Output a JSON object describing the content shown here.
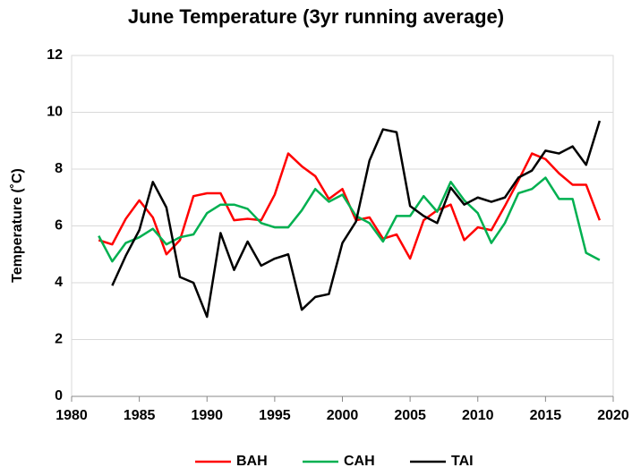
{
  "chart_data": {
    "type": "line",
    "title": "June Temperature (3yr running average)",
    "y_label": "Temperature (˚C)",
    "x": [
      1982,
      1983,
      1984,
      1985,
      1986,
      1987,
      1988,
      1989,
      1990,
      1991,
      1992,
      1993,
      1994,
      1995,
      1996,
      1997,
      1998,
      1999,
      2000,
      2001,
      2002,
      2003,
      2004,
      2005,
      2006,
      2007,
      2008,
      2009,
      2010,
      2011,
      2012,
      2013,
      2014,
      2015,
      2016,
      2017,
      2018,
      2019
    ],
    "series": [
      {
        "name": "BAH",
        "color": "#ff0000",
        "values": [
          5.5,
          5.35,
          6.25,
          6.9,
          6.3,
          5.0,
          5.5,
          7.05,
          7.15,
          7.15,
          6.2,
          6.25,
          6.2,
          7.1,
          8.55,
          8.1,
          7.75,
          6.95,
          7.3,
          6.2,
          6.3,
          5.55,
          5.7,
          4.85,
          6.2,
          6.55,
          6.75,
          5.5,
          5.95,
          5.85,
          6.7,
          7.6,
          8.55,
          8.35,
          7.85,
          7.45,
          7.45,
          6.2
        ]
      },
      {
        "name": "CAH",
        "color": "#00b050",
        "values": [
          5.65,
          4.75,
          5.4,
          5.6,
          5.9,
          5.35,
          5.6,
          5.7,
          6.45,
          6.75,
          6.75,
          6.6,
          6.1,
          5.95,
          5.95,
          6.55,
          7.3,
          6.85,
          7.1,
          6.35,
          6.1,
          5.45,
          6.35,
          6.35,
          7.05,
          6.5,
          7.55,
          6.9,
          6.45,
          5.4,
          6.1,
          7.15,
          7.3,
          7.7,
          6.95,
          6.95,
          5.05,
          4.8
        ]
      },
      {
        "name": "TAI",
        "color": "#000000",
        "values": [
          null,
          3.9,
          4.95,
          5.85,
          7.55,
          6.65,
          4.2,
          4.0,
          2.8,
          5.75,
          4.45,
          5.45,
          4.6,
          4.85,
          5.0,
          3.05,
          3.5,
          3.6,
          5.4,
          6.15,
          8.3,
          9.4,
          9.3,
          6.7,
          6.35,
          6.1,
          7.35,
          6.75,
          7.0,
          6.85,
          7.0,
          7.7,
          7.95,
          8.65,
          8.55,
          8.8,
          8.15,
          9.7
        ]
      }
    ],
    "xlim": [
      1980,
      2020
    ],
    "xticks": [
      1980,
      1985,
      1990,
      1995,
      2000,
      2005,
      2010,
      2015,
      2020
    ],
    "ylim": [
      0,
      12
    ],
    "yticks": [
      0,
      2,
      4,
      6,
      8,
      10,
      12
    ],
    "grid": true,
    "legend": "bottom"
  }
}
